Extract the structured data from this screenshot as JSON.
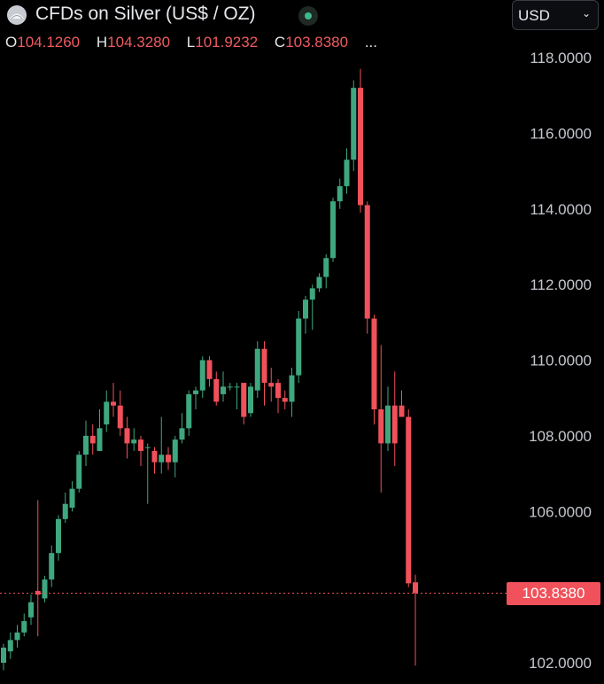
{
  "header": {
    "title": "CFDs on Silver (US$ / OZ)",
    "currency": "USD",
    "ohlc": {
      "o_label": "O",
      "o": "104.1260",
      "h_label": "H",
      "h": "104.3280",
      "l_label": "L",
      "l": "101.9232",
      "c_label": "C",
      "c": "103.8380",
      "more": "..."
    }
  },
  "icons": {
    "logo": "silver-logo-icon",
    "status": "market-status-icon",
    "currency_chevron": "chevron-down-icon"
  },
  "colors": {
    "up": "#3fa77f",
    "down": "#f0515a",
    "background": "#000000",
    "last_price_line": "#f0515a"
  },
  "chart_data": {
    "type": "candlestick",
    "title": "CFDs on Silver (US$ / OZ)",
    "ylabel": "USD",
    "ylim": [
      101.6,
      119.4
    ],
    "yticks": [
      "118.0000",
      "116.0000",
      "114.0000",
      "112.0000",
      "110.0000",
      "108.0000",
      "106.0000",
      "102.0000"
    ],
    "ytick_values": [
      118,
      116,
      114,
      112,
      110,
      108,
      106,
      102
    ],
    "last_price": 103.838,
    "last_price_label": "103.8380",
    "grid": false,
    "candles": [
      [
        102.0,
        102.4,
        101.8,
        102.5
      ],
      [
        102.3,
        102.6,
        102.1,
        102.8
      ],
      [
        102.6,
        102.8,
        102.4,
        103.0
      ],
      [
        102.8,
        103.1,
        102.7,
        103.3
      ],
      [
        103.2,
        103.6,
        103.0,
        103.8
      ],
      [
        103.9,
        103.8,
        102.7,
        106.3
      ],
      [
        103.7,
        104.2,
        103.6,
        104.3
      ],
      [
        104.2,
        104.9,
        104.0,
        105.1
      ],
      [
        104.9,
        105.8,
        104.7,
        105.9
      ],
      [
        105.8,
        106.2,
        105.7,
        106.5
      ],
      [
        106.1,
        106.6,
        106.0,
        106.8
      ],
      [
        106.6,
        107.5,
        106.5,
        107.6
      ],
      [
        107.5,
        108.0,
        107.2,
        108.4
      ],
      [
        108.0,
        107.8,
        107.5,
        108.3
      ],
      [
        107.6,
        108.2,
        107.6,
        108.7
      ],
      [
        108.3,
        108.9,
        108.1,
        109.2
      ],
      [
        108.9,
        108.8,
        108.5,
        109.4
      ],
      [
        108.8,
        108.2,
        108.0,
        109.2
      ],
      [
        108.2,
        107.8,
        107.4,
        108.5
      ],
      [
        107.8,
        107.9,
        107.6,
        108.2
      ],
      [
        107.9,
        107.6,
        107.2,
        108.0
      ],
      [
        107.7,
        107.7,
        106.2,
        107.8
      ],
      [
        107.6,
        107.3,
        107.0,
        107.7
      ],
      [
        107.3,
        107.5,
        107.0,
        108.5
      ],
      [
        107.5,
        107.3,
        107.1,
        107.7
      ],
      [
        107.3,
        107.9,
        106.9,
        108.0
      ],
      [
        107.9,
        108.2,
        107.8,
        108.6
      ],
      [
        108.2,
        109.1,
        108.0,
        109.2
      ],
      [
        109.1,
        109.2,
        108.7,
        109.3
      ],
      [
        109.2,
        110.0,
        109.0,
        110.1
      ],
      [
        110.0,
        109.5,
        109.3,
        110.1
      ],
      [
        109.5,
        108.9,
        108.8,
        109.7
      ],
      [
        109.1,
        109.3,
        108.9,
        109.7
      ],
      [
        109.3,
        109.3,
        109.2,
        109.4
      ],
      [
        109.3,
        109.3,
        108.7,
        109.4
      ],
      [
        109.4,
        108.5,
        108.3,
        109.4
      ],
      [
        108.6,
        109.3,
        108.5,
        109.4
      ],
      [
        109.2,
        110.3,
        109.0,
        110.5
      ],
      [
        110.3,
        109.4,
        108.8,
        110.5
      ],
      [
        109.4,
        109.3,
        108.9,
        109.8
      ],
      [
        109.4,
        109.0,
        108.6,
        109.5
      ],
      [
        109.0,
        108.9,
        108.7,
        109.2
      ],
      [
        108.9,
        109.6,
        108.5,
        109.8
      ],
      [
        109.6,
        111.1,
        109.4,
        111.3
      ],
      [
        111.1,
        111.6,
        110.7,
        111.7
      ],
      [
        111.6,
        111.9,
        110.8,
        112.0
      ],
      [
        111.9,
        112.2,
        111.8,
        112.3
      ],
      [
        112.2,
        112.7,
        111.9,
        112.8
      ],
      [
        112.7,
        114.2,
        112.6,
        114.3
      ],
      [
        114.2,
        114.6,
        114.0,
        114.8
      ],
      [
        114.6,
        115.3,
        114.4,
        115.6
      ],
      [
        115.3,
        117.2,
        115.0,
        117.4
      ],
      [
        117.2,
        114.1,
        113.9,
        117.7
      ],
      [
        114.1,
        111.1,
        110.7,
        114.2
      ],
      [
        111.1,
        108.7,
        108.3,
        111.2
      ],
      [
        108.7,
        107.8,
        106.5,
        110.4
      ],
      [
        107.8,
        108.8,
        107.6,
        109.3
      ],
      [
        108.8,
        107.8,
        107.2,
        109.7
      ],
      [
        108.8,
        108.5,
        108.6,
        109.2
      ],
      [
        108.5,
        104.1,
        104.0,
        108.7
      ],
      [
        104.126,
        103.838,
        101.9232,
        104.328
      ]
    ]
  }
}
